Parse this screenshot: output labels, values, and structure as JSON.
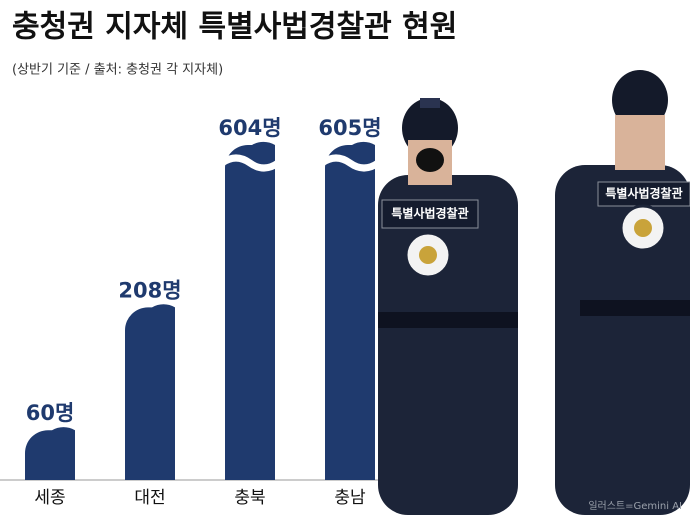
{
  "chart_data": {
    "type": "bar",
    "title": "충청권 지자체 특별사법경찰관 현원",
    "subtitle": "(상반기 기준 / 출처: 충청권 각 지자체)",
    "categories": [
      "세종",
      "대전",
      "충북",
      "충남"
    ],
    "values": [
      60,
      208,
      604,
      605
    ],
    "value_labels": [
      "60명",
      "208명",
      "604명",
      "605명"
    ],
    "color": "#1f3a6e",
    "broken_axis": true
  },
  "illustration": {
    "patch_text": "특별사법경찰관",
    "credit": "일러스트=Gemini AI"
  }
}
